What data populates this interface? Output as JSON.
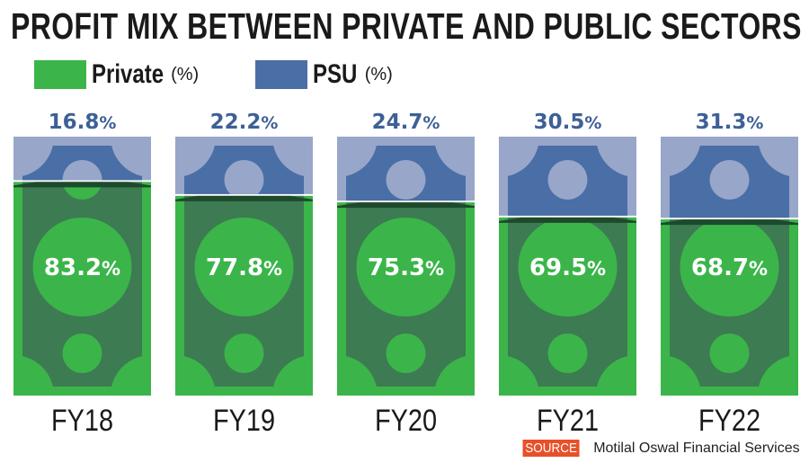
{
  "chart_data": {
    "type": "bar",
    "stacked": true,
    "title": "PROFIT MIX BETWEEN PRIVATE AND PUBLIC SECTORS",
    "categories": [
      "FY18",
      "FY19",
      "FY20",
      "FY21",
      "FY22"
    ],
    "series": [
      {
        "name": "Private",
        "unit": "(%)",
        "values": [
          83.2,
          77.8,
          75.3,
          69.5,
          68.7
        ],
        "labels": [
          "83.2",
          "77.8",
          "75.3",
          "69.5",
          "68.7"
        ],
        "color": "#3bb54a"
      },
      {
        "name": "PSU",
        "unit": "(%)",
        "values": [
          16.8,
          22.2,
          24.7,
          30.5,
          31.3
        ],
        "labels": [
          "16.8",
          "22.2",
          "24.7",
          "30.5",
          "31.3"
        ],
        "color": "#4a6ea6"
      }
    ],
    "ylim": [
      0,
      100
    ],
    "legend": "top-left"
  },
  "source": {
    "tag": "SOURCE",
    "text": "Motilal Oswal Financial Services"
  }
}
